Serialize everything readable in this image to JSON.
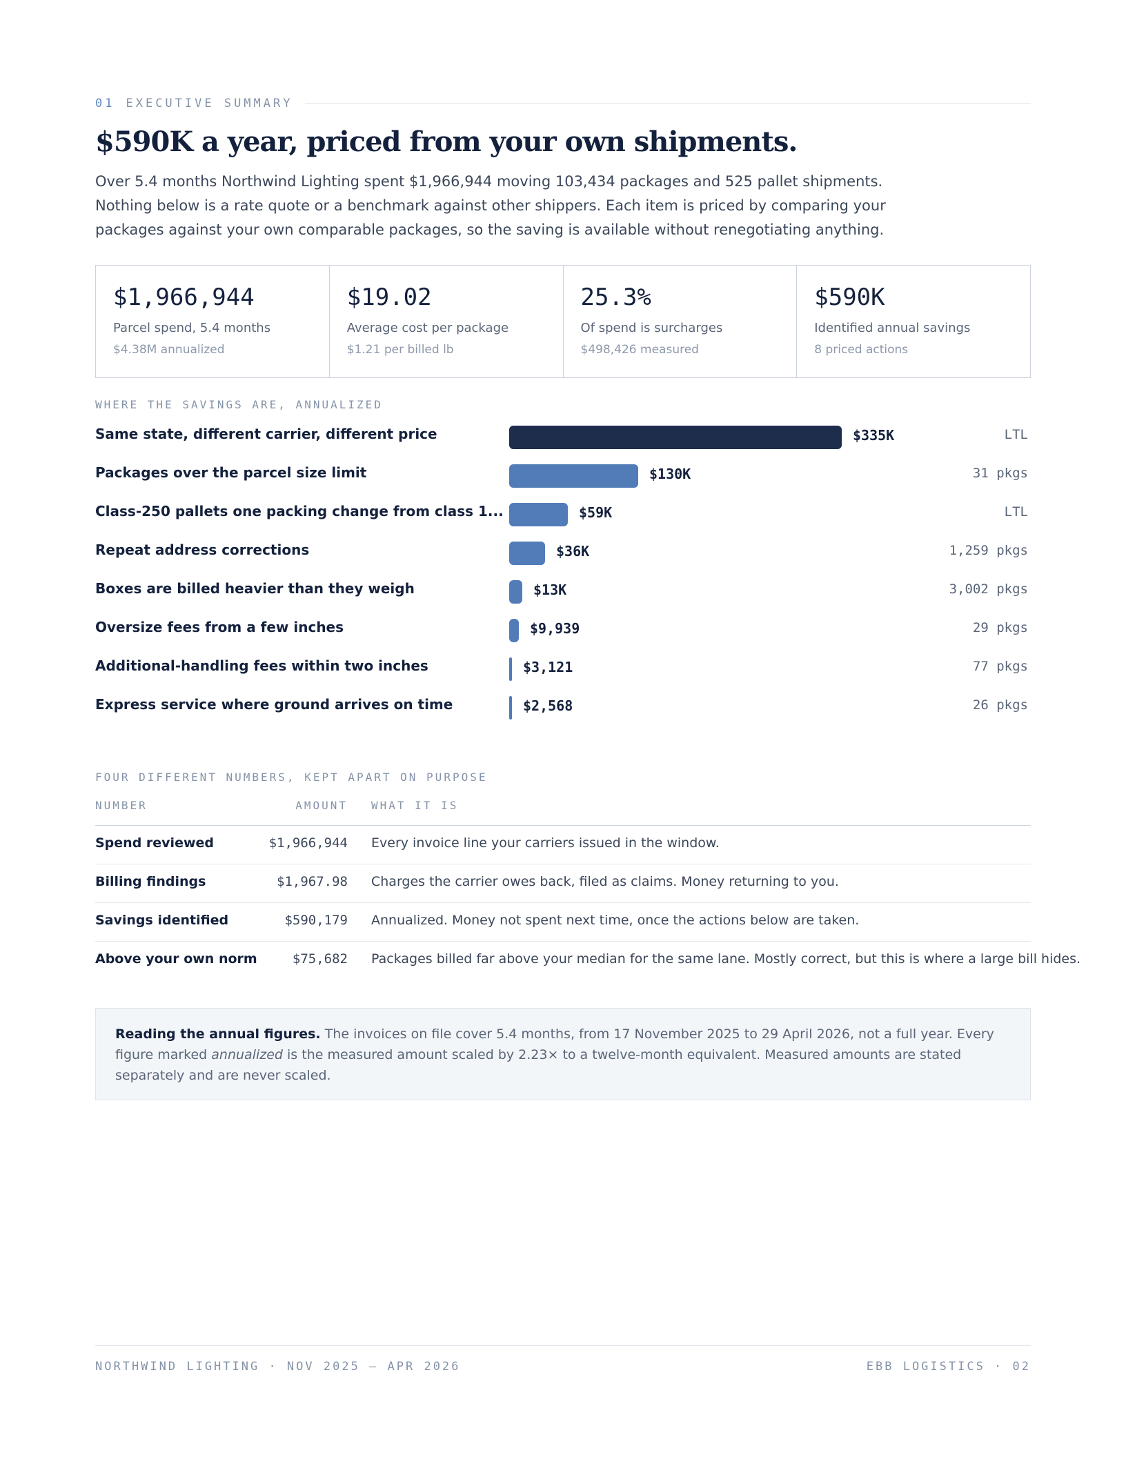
{
  "eyebrow": {
    "number": "01",
    "title": "EXECUTIVE SUMMARY"
  },
  "headline": "$590K a year, priced from your own shipments.",
  "lede": [
    "Over 5.4 months Northwind Lighting spent $1,966,944 moving 103,434 packages and 525 pallet shipments.",
    "Nothing below is a rate quote or a benchmark against other shippers. Each item is priced by comparing your",
    "packages against your own comparable packages, so the saving is available without renegotiating anything."
  ],
  "kpis": [
    {
      "value": "$1,966,944",
      "label": "Parcel spend, 5.4 months",
      "sub": "$4.38M annualized"
    },
    {
      "value": "$19.02",
      "label": "Average cost per package",
      "sub": "$1.21 per billed lb"
    },
    {
      "value": "25.3%",
      "label": "Of spend is surcharges",
      "sub": "$498,426 measured"
    },
    {
      "value": "$590K",
      "label": "Identified annual savings",
      "sub": "8 priced actions"
    }
  ],
  "savings_label": "WHERE THE SAVINGS ARE, ANNUALIZED",
  "chart_data": {
    "type": "bar",
    "orientation": "horizontal",
    "title": "WHERE THE SAVINGS ARE, ANNUALIZED",
    "categories": [
      "Same state, different carrier, different price",
      "Packages over the parcel size limit",
      "Class-250 pallets one packing change from class 1...",
      "Repeat address corrections",
      "Boxes are billed heavier than they weigh",
      "Oversize fees from a few inches",
      "Additional-handling fees within two inches",
      "Express service where ground arrives on time"
    ],
    "values": [
      335000,
      130000,
      59000,
      36000,
      13000,
      9939,
      3121,
      2568
    ],
    "value_labels": [
      "$335K",
      "$130K",
      "$59K",
      "$36K",
      "$13K",
      "$9,939",
      "$3,121",
      "$2,568"
    ],
    "units": [
      "LTL",
      "31 pkgs",
      "LTL",
      "1,259 pkgs",
      "3,002 pkgs",
      "29 pkgs",
      "77 pkgs",
      "26 pkgs"
    ],
    "highlight_color": "#1f2d4d",
    "bar_color": "#527cb8"
  },
  "numbers": {
    "label": "FOUR DIFFERENT NUMBERS, KEPT APART ON PURPOSE",
    "headers": {
      "number": "NUMBER",
      "amount": "AMOUNT",
      "what": "WHAT IT IS"
    },
    "rows": [
      {
        "number": "Spend reviewed",
        "amount": "$1,966,944",
        "what": "Every invoice line your carriers issued in the window."
      },
      {
        "number": "Billing findings",
        "amount": "$1,967.98",
        "what": "Charges the carrier owes back, filed as claims. Money returning to you."
      },
      {
        "number": "Savings identified",
        "amount": "$590,179",
        "what": "Annualized. Money not spent next time, once the actions below are taken."
      },
      {
        "number": "Above your own norm",
        "amount": "$75,682",
        "what": "Packages billed far above your median for the same lane. Mostly correct, but this is where a large bill hides."
      }
    ]
  },
  "note": {
    "lead": "Reading the annual figures.",
    "text1": " The invoices on file cover 5.4 months, from 17 November 2025 to 29 April 2026, not a full year. Every figure marked ",
    "em": "annualized",
    "text2": " is the measured amount scaled by 2.23× to a twelve-month equivalent. Measured amounts are stated separately and are never scaled."
  },
  "footer": {
    "left": "NORTHWIND LIGHTING  ·  NOV 2025 – APR 2026",
    "right": "EBB LOGISTICS  ·  02"
  }
}
